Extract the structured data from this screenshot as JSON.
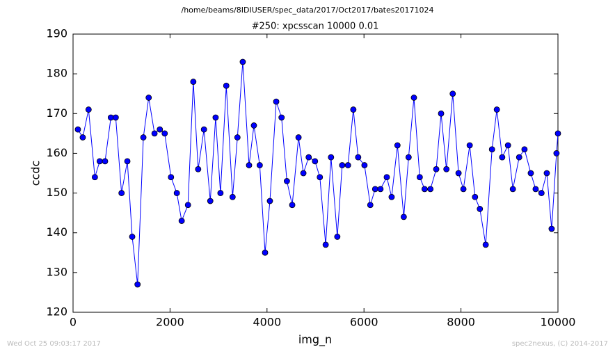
{
  "chart_data": {
    "type": "line",
    "suptitle": "/home/beams/8IDIUSER/spec_data/2017/Oct2017/bates20171024",
    "title": "#250: xpcsscan 10000 0.01",
    "xlabel": "img_n",
    "ylabel": "ccdc",
    "footer_left": "Wed Oct 25 09:03:17 2017",
    "footer_right": "spec2nexus, (C) 2014-2017",
    "x": [
      100,
      200,
      320,
      450,
      550,
      660,
      780,
      880,
      1000,
      1120,
      1220,
      1330,
      1450,
      1560,
      1680,
      1790,
      1890,
      2020,
      2140,
      2240,
      2370,
      2480,
      2580,
      2700,
      2830,
      2940,
      3040,
      3160,
      3290,
      3390,
      3500,
      3630,
      3730,
      3850,
      3960,
      4060,
      4190,
      4300,
      4410,
      4520,
      4650,
      4750,
      4860,
      4990,
      5090,
      5210,
      5320,
      5450,
      5550,
      5670,
      5780,
      5880,
      6010,
      6130,
      6230,
      6340,
      6470,
      6570,
      6690,
      6820,
      6920,
      7030,
      7150,
      7250,
      7370,
      7490,
      7590,
      7700,
      7830,
      7950,
      8050,
      8180,
      8290,
      8390,
      8510,
      8640,
      8740,
      8850,
      8970,
      9070,
      9200,
      9310,
      9440,
      9540,
      9660,
      9770,
      9870,
      9970,
      10000
    ],
    "series": [
      {
        "name": "ccdc",
        "color": "#0000ff",
        "marker_edge": "#000000",
        "values": [
          166,
          164,
          171,
          154,
          158,
          158,
          169,
          169,
          150,
          158,
          139,
          127,
          164,
          174,
          165,
          166,
          165,
          154,
          150,
          143,
          147,
          178,
          156,
          166,
          148,
          169,
          150,
          177,
          149,
          164,
          183,
          157,
          167,
          157,
          135,
          148,
          173,
          169,
          153,
          147,
          164,
          155,
          159,
          158,
          154,
          137,
          159,
          139,
          157,
          157,
          171,
          159,
          157,
          147,
          151,
          151,
          154,
          149,
          162,
          144,
          159,
          174,
          154,
          151,
          151,
          156,
          170,
          156,
          175,
          155,
          151,
          162,
          149,
          146,
          137,
          161,
          171,
          159,
          162,
          151,
          159,
          161,
          155,
          151,
          150,
          155,
          141,
          160,
          165
        ]
      }
    ],
    "xlim": [
      0,
      10000
    ],
    "xticks": [
      0,
      2000,
      4000,
      6000,
      8000,
      10000
    ],
    "ylim": [
      120,
      190
    ],
    "yticks": [
      120,
      130,
      140,
      150,
      160,
      170,
      180,
      190
    ]
  }
}
